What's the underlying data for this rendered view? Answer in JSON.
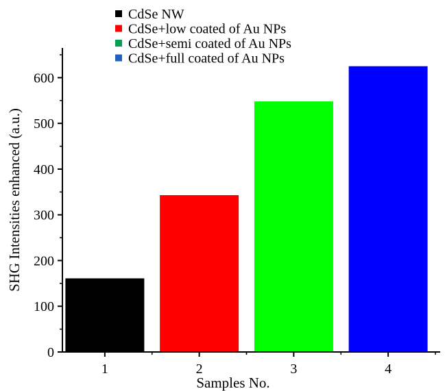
{
  "chart_data": {
    "type": "bar",
    "title": "",
    "xlabel": "Samples No.",
    "ylabel": "SHG Intensities enhanced (a.u.)",
    "categories": [
      "1",
      "2",
      "3",
      "4"
    ],
    "values": [
      161,
      343,
      548,
      625
    ],
    "bar_colors": [
      "#000000",
      "#ff0000",
      "#00ff00",
      "#0000ff"
    ],
    "ylim": [
      0,
      665
    ],
    "yticks": [
      0,
      100,
      200,
      300,
      400,
      500,
      600
    ],
    "grid": false,
    "legend_position": "top-center",
    "legend": [
      {
        "label": "CdSe NW",
        "color": "#000000"
      },
      {
        "label": "CdSe+low coated of Au NPs",
        "color": "#ff0000"
      },
      {
        "label": "CdSe+semi coated of Au NPs",
        "color": "#00a050"
      },
      {
        "label": "CdSe+full coated of Au NPs",
        "color": "#2060c0"
      }
    ]
  }
}
